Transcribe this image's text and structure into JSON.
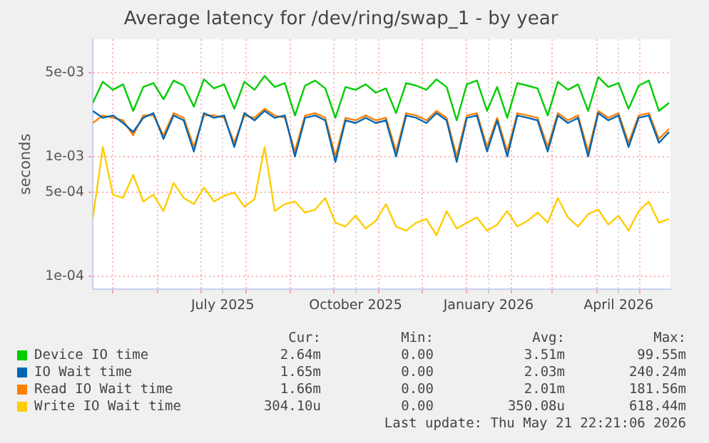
{
  "chart_data": {
    "type": "line",
    "title": "Average latency for /dev/ring/swap_1 - by year",
    "ylabel": "seconds",
    "log": "y",
    "grid": true,
    "legend": "bottom",
    "marker": "none",
    "line_style": "solid",
    "xlim": [
      "2025-04-17",
      "2026-05-22"
    ],
    "xticks": [
      {
        "value": "2025-05-01",
        "label": null
      },
      {
        "value": "2025-06-01",
        "label": null
      },
      {
        "value": "2025-07-01",
        "label": null
      },
      {
        "value": "2025-07-16",
        "label": "July 2025"
      },
      {
        "value": "2025-08-01",
        "label": null
      },
      {
        "value": "2025-09-01",
        "label": null
      },
      {
        "value": "2025-10-01",
        "label": null
      },
      {
        "value": "2025-10-16",
        "label": "October 2025"
      },
      {
        "value": "2025-11-01",
        "label": null
      },
      {
        "value": "2025-12-01",
        "label": null
      },
      {
        "value": "2026-01-01",
        "label": null
      },
      {
        "value": "2026-01-16",
        "label": "January 2026"
      },
      {
        "value": "2026-02-01",
        "label": null
      },
      {
        "value": "2026-03-01",
        "label": null
      },
      {
        "value": "2026-04-01",
        "label": null
      },
      {
        "value": "2026-04-16",
        "label": "April 2026"
      },
      {
        "value": "2026-05-01",
        "label": null
      }
    ],
    "ylim": [
      7.8e-05,
      0.0095
    ],
    "yticks": [
      {
        "value": 0.0001,
        "label": "1e-04"
      },
      {
        "value": 0.0005,
        "label": "5e-04"
      },
      {
        "value": 0.001,
        "label": "1e-03"
      },
      {
        "value": 0.005,
        "label": "5e-03"
      }
    ],
    "x": [
      "2025-04-17",
      "2025-04-24",
      "2025-05-01",
      "2025-05-08",
      "2025-05-15",
      "2025-05-22",
      "2025-05-29",
      "2025-06-05",
      "2025-06-12",
      "2025-06-19",
      "2025-06-26",
      "2025-07-03",
      "2025-07-10",
      "2025-07-17",
      "2025-07-24",
      "2025-07-31",
      "2025-08-07",
      "2025-08-14",
      "2025-08-21",
      "2025-08-28",
      "2025-09-04",
      "2025-09-11",
      "2025-09-18",
      "2025-09-25",
      "2025-10-02",
      "2025-10-09",
      "2025-10-16",
      "2025-10-23",
      "2025-10-30",
      "2025-11-06",
      "2025-11-13",
      "2025-11-20",
      "2025-11-27",
      "2025-12-04",
      "2025-12-11",
      "2025-12-18",
      "2025-12-25",
      "2026-01-01",
      "2026-01-08",
      "2026-01-15",
      "2026-01-22",
      "2026-01-29",
      "2026-02-05",
      "2026-02-12",
      "2026-02-19",
      "2026-02-26",
      "2026-03-05",
      "2026-03-12",
      "2026-03-19",
      "2026-03-26",
      "2026-04-02",
      "2026-04-09",
      "2026-04-16",
      "2026-04-23",
      "2026-04-30",
      "2026-05-07",
      "2026-05-14",
      "2026-05-21"
    ],
    "series": [
      {
        "name": "Device IO time",
        "color": "#00cc00",
        "values": [
          0.0028,
          0.0042,
          0.0036,
          0.004,
          0.0024,
          0.0038,
          0.0041,
          0.003,
          0.0043,
          0.0039,
          0.0026,
          0.0044,
          0.0037,
          0.004,
          0.0025,
          0.0042,
          0.0036,
          0.0047,
          0.0038,
          0.0041,
          0.0022,
          0.0039,
          0.0043,
          0.0037,
          0.0021,
          0.0038,
          0.0036,
          0.004,
          0.0034,
          0.0037,
          0.0023,
          0.0041,
          0.0039,
          0.0036,
          0.0044,
          0.0038,
          0.002,
          0.004,
          0.0043,
          0.0024,
          0.0038,
          0.0021,
          0.0041,
          0.0039,
          0.0037,
          0.0022,
          0.0042,
          0.0036,
          0.004,
          0.0024,
          0.0046,
          0.0038,
          0.0041,
          0.0025,
          0.0039,
          0.0043,
          0.0024,
          0.0028
        ]
      },
      {
        "name": "IO Wait time",
        "color": "#0066b3",
        "values": [
          0.0024,
          0.0021,
          0.0022,
          0.0019,
          0.0016,
          0.0021,
          0.0023,
          0.0014,
          0.0022,
          0.002,
          0.0011,
          0.0023,
          0.0021,
          0.0022,
          0.0012,
          0.0023,
          0.002,
          0.0024,
          0.0021,
          0.0022,
          0.001,
          0.0021,
          0.0022,
          0.002,
          0.0009,
          0.002,
          0.0019,
          0.0021,
          0.0019,
          0.002,
          0.001,
          0.0022,
          0.0021,
          0.0019,
          0.0023,
          0.002,
          0.0009,
          0.0021,
          0.0022,
          0.0011,
          0.002,
          0.001,
          0.0022,
          0.0021,
          0.002,
          0.0011,
          0.0022,
          0.0019,
          0.0021,
          0.001,
          0.0023,
          0.002,
          0.0022,
          0.0012,
          0.0021,
          0.0022,
          0.0013,
          0.0016
        ]
      },
      {
        "name": "Read IO Wait time",
        "color": "#ff8000",
        "values": [
          0.0019,
          0.0022,
          0.0021,
          0.002,
          0.0015,
          0.0022,
          0.0022,
          0.0015,
          0.0023,
          0.0021,
          0.0012,
          0.0022,
          0.0022,
          0.0021,
          0.0013,
          0.0022,
          0.0021,
          0.0025,
          0.0022,
          0.0021,
          0.0011,
          0.0022,
          0.0023,
          0.0021,
          0.001,
          0.0021,
          0.002,
          0.0022,
          0.002,
          0.0021,
          0.0011,
          0.0023,
          0.0022,
          0.002,
          0.0024,
          0.0021,
          0.001,
          0.0022,
          0.0023,
          0.0012,
          0.0021,
          0.0011,
          0.0023,
          0.0022,
          0.0021,
          0.0012,
          0.0023,
          0.002,
          0.0022,
          0.0011,
          0.0024,
          0.0021,
          0.0023,
          0.0013,
          0.0022,
          0.0023,
          0.0014,
          0.0017
        ]
      },
      {
        "name": "Write IO Wait time",
        "color": "#ffcc00",
        "values": [
          0.0003,
          0.0012,
          0.00048,
          0.00045,
          0.0007,
          0.00042,
          0.00048,
          0.00035,
          0.0006,
          0.00045,
          0.0004,
          0.00055,
          0.00042,
          0.00047,
          0.0005,
          0.00038,
          0.00044,
          0.0012,
          0.00035,
          0.0004,
          0.00042,
          0.00034,
          0.00036,
          0.00045,
          0.00028,
          0.00026,
          0.00032,
          0.00025,
          0.00029,
          0.0004,
          0.00026,
          0.00024,
          0.00028,
          0.0003,
          0.00022,
          0.00035,
          0.00025,
          0.00028,
          0.00031,
          0.00024,
          0.00027,
          0.00035,
          0.00026,
          0.00029,
          0.00034,
          0.00028,
          0.00045,
          0.00031,
          0.00026,
          0.00033,
          0.00036,
          0.00027,
          0.00032,
          0.00024,
          0.00035,
          0.00042,
          0.00028,
          0.0003
        ]
      }
    ],
    "annotations": [
      "Cur:",
      "Min:",
      "Avg:",
      "Max:",
      "2.64m",
      "0.00",
      "3.51m",
      "99.55m",
      "1.65m",
      "0.00",
      "2.03m",
      "240.24m",
      "1.66m",
      "0.00",
      "2.01m",
      "181.56m",
      "304.10u",
      "0.00",
      "350.08u",
      "618.44m",
      "Last update: Thu May 21 22:21:06 2026"
    ]
  }
}
